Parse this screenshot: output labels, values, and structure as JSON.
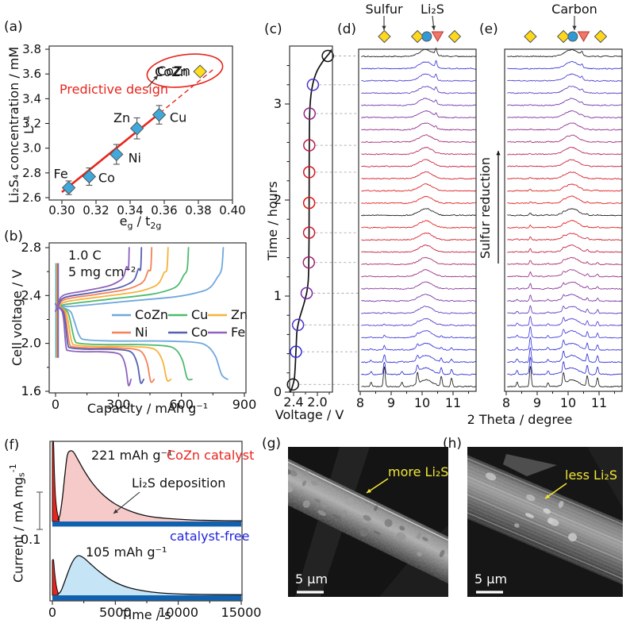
{
  "panel_labels": {
    "a": "(a)",
    "b": "(b)",
    "c": "(c)",
    "d": "(d)",
    "e": "(e)",
    "f": "(f)",
    "g": "(g)",
    "h": "(h)"
  },
  "colors": {
    "accent_red": "#e8251d",
    "point_blue": "#3fa9dc",
    "point_yellow": "#ffdf1b",
    "marker_circle_blue": "#2e9bd6",
    "marker_triangle": "#f0766b",
    "deep_blue_band": "#1061b0",
    "pink_fill": "#f7caca",
    "light_blue_fill": "#c5e5f7",
    "sem_accent": "#f2e636",
    "catalyst_free_blue": "#2025dd"
  },
  "axis_labels": {
    "a_y": "Li₂S₄ concentration / mM L⁻¹",
    "a_x_parts": {
      "p1": "e",
      "s1": "g",
      "p2": " / t",
      "s2": "2g"
    },
    "b_y": "Cell voltage / V",
    "b_x": "Capacity / mAh g⁻¹",
    "c_y": "Time / hours",
    "c_x": "Voltage / V",
    "de_x": "2 Theta / degree",
    "f_y_parts": {
      "p1": "Current / mA mg",
      "s1": "s",
      "sup1": "-1"
    },
    "f_x": "Time / s"
  },
  "xrd_header": {
    "sulfur": "Sulfur",
    "li2s": "Li₂S",
    "carbon": "Carbon",
    "reduction": "Sulfur reduction"
  },
  "chart_data": [
    {
      "id": "a",
      "type": "scatter",
      "title": "Predictive design",
      "xlabel": "eg / t2g",
      "ylabel": "Li2S4 concentration / mM L-1",
      "xticks": [
        0.3,
        0.32,
        0.34,
        0.36,
        0.38,
        0.4
      ],
      "yticks": [
        2.6,
        2.8,
        3.0,
        3.2,
        3.4,
        3.6,
        3.8
      ],
      "xlim": [
        0.293,
        0.4
      ],
      "ylim": [
        2.58,
        3.8
      ],
      "annotation": "Predictive design",
      "ellipse_label": "CoZn",
      "points": [
        {
          "label": "Fe",
          "x": 0.304,
          "y": 2.68,
          "err": 0.055,
          "color": "#3fa9dc"
        },
        {
          "label": "Co",
          "x": 0.316,
          "y": 2.77,
          "err": 0.07,
          "color": "#3fa9dc"
        },
        {
          "label": "Ni",
          "x": 0.332,
          "y": 2.95,
          "err": 0.08,
          "color": "#3fa9dc"
        },
        {
          "label": "Zn",
          "x": 0.344,
          "y": 3.16,
          "err": 0.085,
          "color": "#3fa9dc"
        },
        {
          "label": "Cu",
          "x": 0.357,
          "y": 3.27,
          "err": 0.075,
          "color": "#3fa9dc"
        },
        {
          "label": "CoZn",
          "x": 0.381,
          "y": 3.62,
          "err": 0,
          "color": "#ffdf1b"
        }
      ],
      "fit_solid": [
        [
          0.3,
          2.645
        ],
        [
          0.3575,
          3.285
        ]
      ],
      "fit_dashed": [
        [
          0.3575,
          3.285
        ],
        [
          0.3895,
          3.645
        ]
      ]
    },
    {
      "id": "b",
      "type": "line",
      "xlabel": "Capacity / mAh g-1",
      "ylabel": "Cell voltage / V",
      "xticks": [
        0,
        300,
        600,
        900
      ],
      "yticks": [
        1.6,
        2.0,
        2.4,
        2.8
      ],
      "xlim": [
        -30,
        910
      ],
      "ylim": [
        1.59,
        2.84
      ],
      "notes": {
        "rate": "1.0 C",
        "loading": "5 mg cm⁻²"
      },
      "series": [
        {
          "name": "CoZn",
          "color": "#6fa8dc",
          "capacity": 820,
          "v_discharge": 2.02,
          "v_charge": 2.33
        },
        {
          "name": "Cu",
          "color": "#4fba6f",
          "capacity": 650,
          "v_discharge": 1.99,
          "v_charge": 2.35
        },
        {
          "name": "Zn",
          "color": "#f6b23a",
          "capacity": 550,
          "v_discharge": 1.975,
          "v_charge": 2.37
        },
        {
          "name": "Ni",
          "color": "#f48157",
          "capacity": 470,
          "v_discharge": 1.962,
          "v_charge": 2.388
        },
        {
          "name": "Co",
          "color": "#5560b0",
          "capacity": 420,
          "v_discharge": 1.952,
          "v_charge": 2.402
        },
        {
          "name": "Fe",
          "color": "#8f63bd",
          "capacity": 360,
          "v_discharge": 1.93,
          "v_charge": 2.42
        }
      ]
    },
    {
      "id": "c",
      "type": "line",
      "xlabel": "Voltage / V",
      "ylabel": "Time / hours",
      "xticks": [
        2.4,
        2.0
      ],
      "yticks": [
        0,
        1,
        2,
        3
      ],
      "xlim": [
        2.467,
        1.76
      ],
      "ylim": [
        0,
        3.6
      ],
      "curve": [
        [
          0,
          2.455
        ],
        [
          0.04,
          2.43
        ],
        [
          0.08,
          2.41
        ],
        [
          0.15,
          2.385
        ],
        [
          0.3,
          2.37
        ],
        [
          0.5,
          2.355
        ],
        [
          0.62,
          2.345
        ],
        [
          0.7,
          2.325
        ],
        [
          0.78,
          2.295
        ],
        [
          0.88,
          2.245
        ],
        [
          0.97,
          2.205
        ],
        [
          1.05,
          2.175
        ],
        [
          1.15,
          2.155
        ],
        [
          1.3,
          2.145
        ],
        [
          1.6,
          2.14
        ],
        [
          2.0,
          2.138
        ],
        [
          2.4,
          2.137
        ],
        [
          2.7,
          2.135
        ],
        [
          2.9,
          2.13
        ],
        [
          3.05,
          2.115
        ],
        [
          3.15,
          2.095
        ],
        [
          3.25,
          2.06
        ],
        [
          3.35,
          2.0
        ],
        [
          3.45,
          1.9
        ],
        [
          3.52,
          1.81
        ],
        [
          3.56,
          1.77
        ]
      ],
      "markers": [
        {
          "t": 0.08,
          "v": 2.41,
          "color": "#111111"
        },
        {
          "t": 0.42,
          "v": 2.36,
          "color": "#2a2ad6"
        },
        {
          "t": 0.7,
          "v": 2.325,
          "color": "#4433cf"
        },
        {
          "t": 1.03,
          "v": 2.18,
          "color": "#7a28a6"
        },
        {
          "t": 1.35,
          "v": 2.143,
          "color": "#a21e6e"
        },
        {
          "t": 1.66,
          "v": 2.139,
          "color": "#cf1430"
        },
        {
          "t": 1.97,
          "v": 2.138,
          "color": "#e01111"
        },
        {
          "t": 2.29,
          "v": 2.137,
          "color": "#d8121c"
        },
        {
          "t": 2.57,
          "v": 2.136,
          "color": "#bb1948"
        },
        {
          "t": 2.9,
          "v": 2.13,
          "color": "#8f2284"
        },
        {
          "t": 3.2,
          "v": 2.075,
          "color": "#4c33cc"
        },
        {
          "t": 3.5,
          "v": 1.825,
          "color": "#111111"
        }
      ]
    },
    {
      "id": "d",
      "type": "heatmap",
      "subtype": "xrd-waterfall",
      "xlabel": "2 Theta / degree",
      "xticks": [
        8,
        9,
        10,
        11
      ],
      "n_traces": 28,
      "sulfur_amp": 26,
      "sulfur_decay": 2.0,
      "li2s_rate": 1.1,
      "sulfur_peaks": [
        [
          8.78,
          1.0
        ],
        [
          9.85,
          0.55
        ],
        [
          10.62,
          0.5
        ],
        [
          10.95,
          0.42
        ],
        [
          8.35,
          0.22
        ],
        [
          9.35,
          0.2
        ]
      ],
      "carbon_hump": {
        "center": 10.12,
        "sigma": 0.21,
        "height": 8.5
      },
      "li2s_peak": {
        "center": 10.45,
        "sigma": 0.028
      },
      "marker_diamonds": [
        8.78,
        9.85,
        11.05
      ],
      "marker_circle": 10.15,
      "marker_triangle": 10.5,
      "trace_colors": [
        "#111111",
        "#2222cf",
        "#2626d9",
        "#2e2ee2",
        "#3a35dd",
        "#4b33cd",
        "#5d2fba",
        "#7029a8",
        "#812693",
        "#92217d",
        "#a51e62",
        "#c01739",
        "#d31226",
        "#e01111",
        "#111111",
        "#e01111",
        "#dc1115",
        "#d5121f",
        "#c91534",
        "#b61a55",
        "#a01e70",
        "#8d2286",
        "#7a269a",
        "#692baa",
        "#5731bd",
        "#4434cd",
        "#2c2cd9",
        "#111111"
      ]
    },
    {
      "id": "e",
      "type": "heatmap",
      "subtype": "xrd-waterfall",
      "xlabel": "2 Theta / degree",
      "xticks": [
        8,
        9,
        10,
        11
      ],
      "n_traces": 28,
      "sulfur_amp": 26,
      "sulfur_decay": 6.0,
      "li2s_rate": 0.5,
      "sulfur_peaks": [
        [
          8.78,
          1.0
        ],
        [
          9.85,
          0.55
        ],
        [
          10.62,
          0.5
        ],
        [
          10.95,
          0.42
        ],
        [
          8.35,
          0.22
        ],
        [
          9.35,
          0.2
        ]
      ],
      "carbon_hump": {
        "center": 10.12,
        "sigma": 0.21,
        "height": 8.5
      },
      "li2s_peak": {
        "center": 10.45,
        "sigma": 0.028
      },
      "marker_diamonds": [
        8.78,
        9.85,
        11.05
      ],
      "marker_circle": 10.15,
      "marker_triangle": 10.5,
      "trace_colors": [
        "#111111",
        "#2222cf",
        "#2626d9",
        "#2e2ee2",
        "#3a35dd",
        "#4b33cd",
        "#5d2fba",
        "#7029a8",
        "#812693",
        "#92217d",
        "#a51e62",
        "#c01739",
        "#d31226",
        "#e01111",
        "#111111",
        "#e01111",
        "#dc1115",
        "#d5121f",
        "#c91534",
        "#b61a55",
        "#a01e70",
        "#8d2286",
        "#7a269a",
        "#692baa",
        "#5731bd",
        "#4434cd",
        "#2c2cd9",
        "#111111"
      ]
    },
    {
      "id": "f",
      "type": "area",
      "xlabel": "Time / s",
      "xticks": [
        0,
        5000,
        10000,
        15000
      ],
      "xlim": [
        0,
        15000
      ],
      "scale_label": "0.1",
      "annotation": "Li₂S deposition",
      "top": {
        "label": "CoZn catalyst",
        "capacity_label": "221 mAh g⁻¹",
        "fill": "#f7caca",
        "peak_t": [
          450,
          600,
          800,
          1000,
          1200,
          1450,
          1700,
          2100,
          2600,
          3200,
          4000,
          5000,
          6200,
          7500,
          9000,
          11000,
          13000,
          15000
        ],
        "peak_h": [
          3,
          8,
          30,
          60,
          84,
          89,
          87,
          76,
          62,
          48,
          34,
          22,
          13,
          7,
          4,
          2,
          1.2,
          0.8
        ]
      },
      "bottom": {
        "label": "catalyst-free",
        "capacity_label": "105 mAh g⁻¹",
        "fill": "#c5e5f7",
        "peak_t": [
          500,
          700,
          900,
          1200,
          1500,
          1800,
          2100,
          2500,
          3000,
          3800,
          4800,
          6000,
          7500,
          9000,
          11000,
          15000
        ],
        "peak_h": [
          2,
          6,
          14,
          27,
          39,
          47,
          50,
          47,
          40,
          29,
          18,
          10,
          5,
          2.5,
          1.3,
          0.7
        ]
      }
    }
  ],
  "sem": {
    "g": {
      "note": "more Li₂S",
      "scalebar": "5 µm"
    },
    "h": {
      "note": "less Li₂S",
      "scalebar": "5 µm"
    }
  }
}
